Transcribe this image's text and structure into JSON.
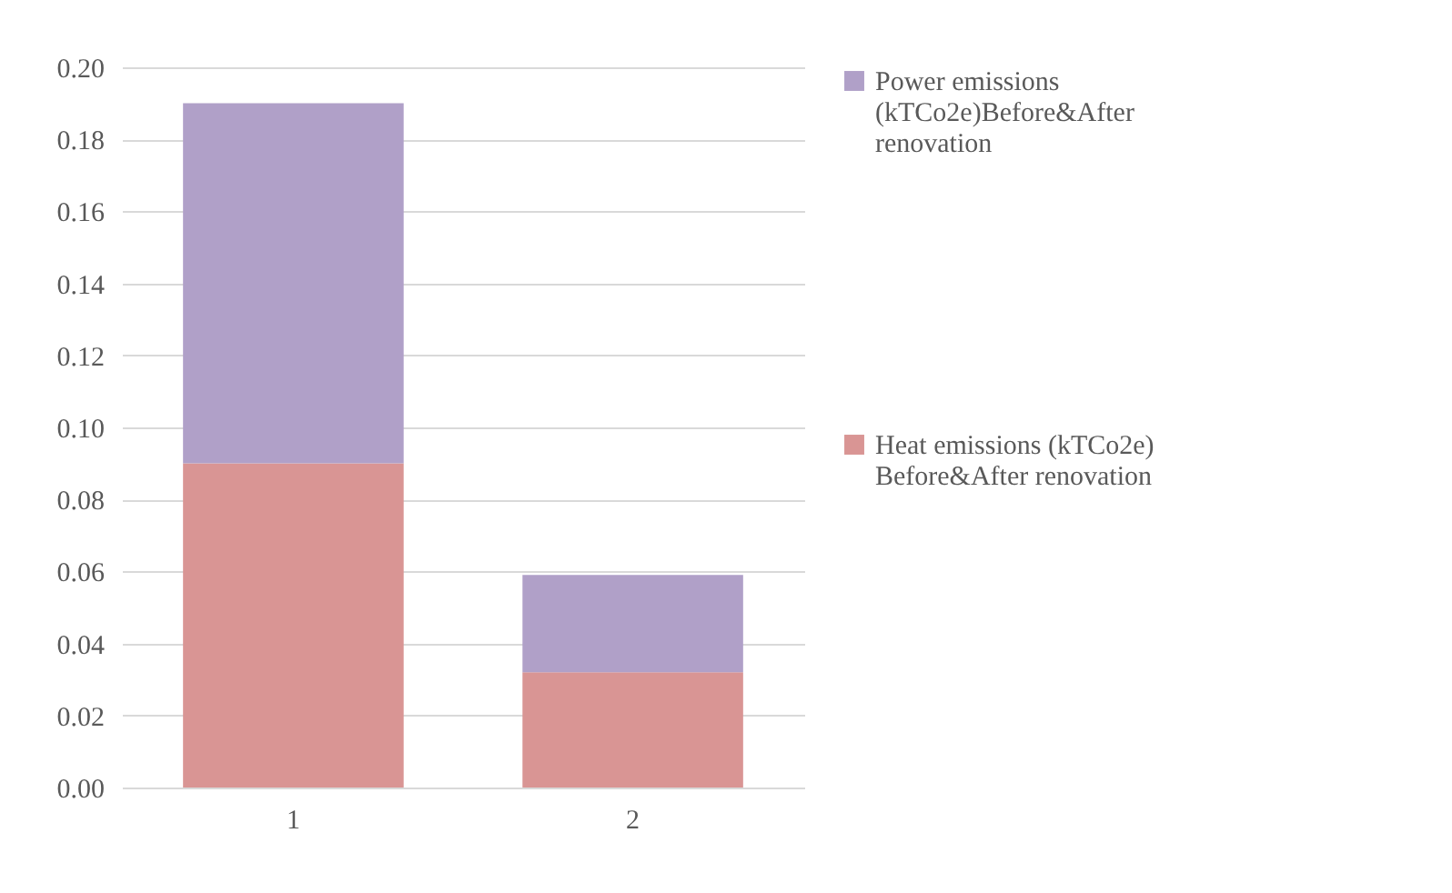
{
  "chart_data": {
    "type": "bar",
    "stacked": true,
    "categories": [
      "1",
      "2"
    ],
    "series": [
      {
        "name": "Heat emissions (kTCo2e) Before&After renovation",
        "color": "#d99594",
        "values": [
          0.09,
          0.032
        ]
      },
      {
        "name": "Power emissions (kTCo2e)Before&After renovation",
        "color": "#b0a0c8",
        "values": [
          0.1,
          0.027
        ]
      }
    ],
    "ylim": [
      0,
      0.2
    ],
    "yticks": [
      {
        "value": 0,
        "label": "0.00"
      },
      {
        "value": 0.02,
        "label": "0.02"
      },
      {
        "value": 0.04,
        "label": "0.04"
      },
      {
        "value": 0.06,
        "label": "0.06"
      },
      {
        "value": 0.08,
        "label": "0.08"
      },
      {
        "value": 0.1,
        "label": "0.10"
      },
      {
        "value": 0.12,
        "label": "0.12"
      },
      {
        "value": 0.14,
        "label": "0.14"
      },
      {
        "value": 0.16,
        "label": "0.16"
      },
      {
        "value": 0.18,
        "label": "0.18"
      },
      {
        "value": 0.2,
        "label": "0.20"
      }
    ],
    "grid": "y",
    "legend": "right"
  }
}
